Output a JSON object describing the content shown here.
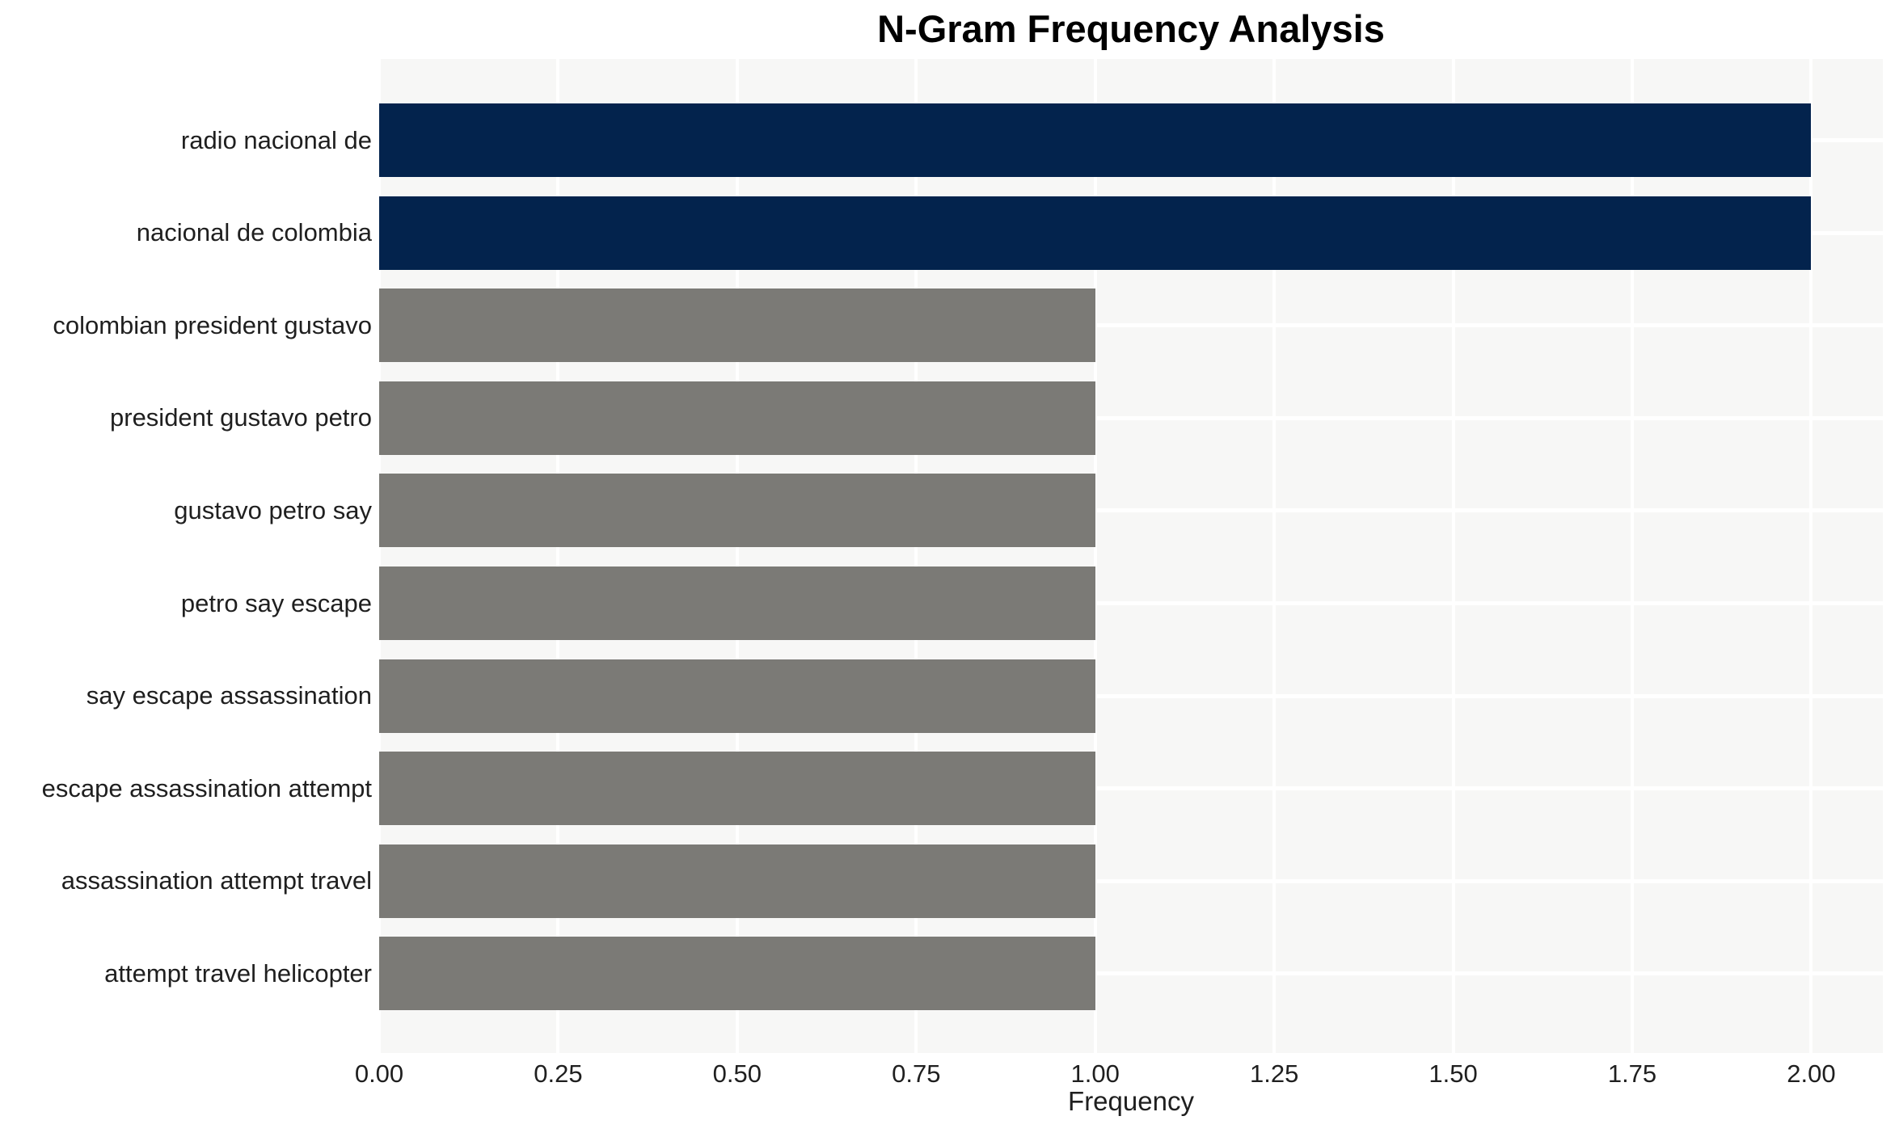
{
  "chart_data": {
    "type": "bar",
    "orientation": "horizontal",
    "title": "N-Gram Frequency Analysis",
    "xlabel": "Frequency",
    "ylabel": "",
    "categories": [
      "radio nacional de",
      "nacional de colombia",
      "colombian president gustavo",
      "president gustavo petro",
      "gustavo petro say",
      "petro say escape",
      "say escape assassination",
      "escape assassination attempt",
      "assassination attempt travel",
      "attempt travel helicopter"
    ],
    "values": [
      2,
      2,
      1,
      1,
      1,
      1,
      1,
      1,
      1,
      1
    ],
    "bar_colors": [
      "#03234d",
      "#03234d",
      "#7b7a76",
      "#7b7a76",
      "#7b7a76",
      "#7b7a76",
      "#7b7a76",
      "#7b7a76",
      "#7b7a76",
      "#7b7a76"
    ],
    "xlim": [
      0,
      2.1
    ],
    "xticks": [
      0,
      0.25,
      0.5,
      0.75,
      1.0,
      1.25,
      1.5,
      1.75,
      2.0
    ],
    "xtick_labels": [
      "0.00",
      "0.25",
      "0.50",
      "0.75",
      "1.00",
      "1.25",
      "1.50",
      "1.75",
      "2.00"
    ],
    "grid": true,
    "legend": "none",
    "colors": {
      "highlight_bar": "#03234d",
      "default_bar": "#7b7a76",
      "plot_background": "#f7f7f6",
      "gridline": "#ffffff",
      "text": "#1f1f1f",
      "title": "#000000"
    }
  }
}
